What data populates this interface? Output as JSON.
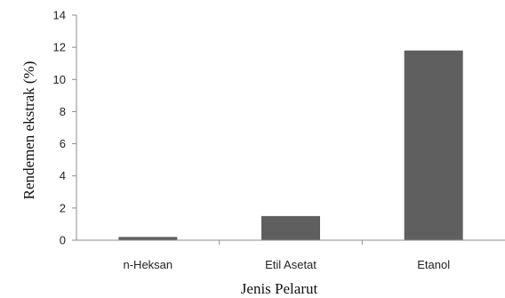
{
  "chart_data": {
    "type": "bar",
    "categories": [
      "n-Heksan",
      "Etil Asetat",
      "Etanol"
    ],
    "values": [
      0.2,
      1.5,
      11.8
    ],
    "xlabel": "Jenis Pelarut",
    "ylabel": "Rendemen ekstrak (%)",
    "ylim": [
      0,
      14
    ],
    "yticks": [
      0,
      2,
      4,
      6,
      8,
      10,
      12,
      14
    ],
    "grid": false,
    "legend": "none",
    "bar_color": "#5f5f5f"
  }
}
